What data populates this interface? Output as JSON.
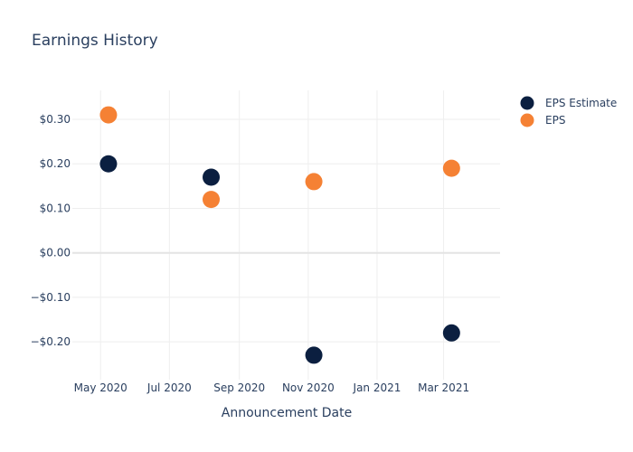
{
  "chart_data": {
    "type": "scatter",
    "title": "Earnings History",
    "xlabel": "Announcement Date",
    "ylabel": "",
    "x_type": "date",
    "xlim": [
      "2020-04-06",
      "2021-04-20"
    ],
    "ylim": [
      -0.285,
      0.365
    ],
    "x_ticks": [
      {
        "date": "2020-05-01",
        "label": "May 2020"
      },
      {
        "date": "2020-07-01",
        "label": "Jul 2020"
      },
      {
        "date": "2020-09-01",
        "label": "Sep 2020"
      },
      {
        "date": "2020-11-01",
        "label": "Nov 2020"
      },
      {
        "date": "2021-01-01",
        "label": "Jan 2021"
      },
      {
        "date": "2021-03-01",
        "label": "Mar 2021"
      }
    ],
    "y_ticks": [
      {
        "value": 0.3,
        "label": "$0.30"
      },
      {
        "value": 0.2,
        "label": "$0.20"
      },
      {
        "value": 0.1,
        "label": "$0.10"
      },
      {
        "value": 0.0,
        "label": "$0.00"
      },
      {
        "value": -0.1,
        "label": "−$0.10"
      },
      {
        "value": -0.2,
        "label": "−$0.20"
      }
    ],
    "grid": true,
    "legend_position": "top-right",
    "series": [
      {
        "name": "EPS Estimate",
        "color": "#0b1f40",
        "points": [
          {
            "x": "2020-05-08",
            "y": 0.2
          },
          {
            "x": "2020-08-07",
            "y": 0.17
          },
          {
            "x": "2020-11-06",
            "y": -0.23
          },
          {
            "x": "2021-03-08",
            "y": -0.18
          }
        ]
      },
      {
        "name": "EPS",
        "color": "#f58134",
        "points": [
          {
            "x": "2020-05-08",
            "y": 0.31
          },
          {
            "x": "2020-08-07",
            "y": 0.12
          },
          {
            "x": "2020-11-06",
            "y": 0.16
          },
          {
            "x": "2021-03-08",
            "y": 0.19
          }
        ]
      }
    ]
  }
}
